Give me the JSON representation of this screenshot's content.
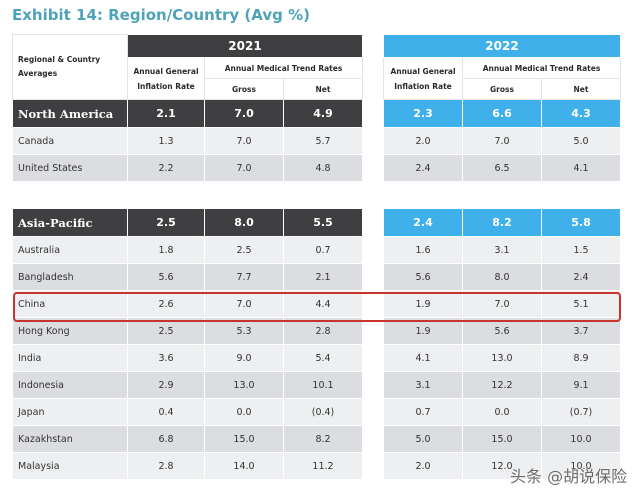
{
  "title": "Exhibit 14: Region/Country (Avg %)",
  "header": {
    "row_label": "Regional & Country Averages",
    "year_2021": "2021",
    "year_2022": "2022",
    "inflation": "Annual General Inflation Rate",
    "medical": "Annual Medical Trend Rates",
    "gross": "Gross",
    "net": "Net"
  },
  "colors": {
    "dark_header": "#3f3f41",
    "blue_header": "#3fb0ea",
    "title": "#4fa3b8",
    "highlight": "#c8332f"
  },
  "north_america": {
    "region": {
      "name": "North America",
      "y2021": [
        "2.1",
        "7.0",
        "4.9"
      ],
      "y2022": [
        "2.3",
        "6.6",
        "4.3"
      ]
    },
    "rows": [
      {
        "name": "Canada",
        "y2021": [
          "1.3",
          "7.0",
          "5.7"
        ],
        "y2022": [
          "2.0",
          "7.0",
          "5.0"
        ]
      },
      {
        "name": "United States",
        "y2021": [
          "2.2",
          "7.0",
          "4.8"
        ],
        "y2022": [
          "2.4",
          "6.5",
          "4.1"
        ]
      }
    ]
  },
  "asia_pacific": {
    "region": {
      "name": "Asia-Pacific",
      "y2021": [
        "2.5",
        "8.0",
        "5.5"
      ],
      "y2022": [
        "2.4",
        "8.2",
        "5.8"
      ]
    },
    "rows": [
      {
        "name": "Australia",
        "y2021": [
          "1.8",
          "2.5",
          "0.7"
        ],
        "y2022": [
          "1.6",
          "3.1",
          "1.5"
        ]
      },
      {
        "name": "Bangladesh",
        "y2021": [
          "5.6",
          "7.7",
          "2.1"
        ],
        "y2022": [
          "5.6",
          "8.0",
          "2.4"
        ]
      },
      {
        "name": "China",
        "y2021": [
          "2.6",
          "7.0",
          "4.4"
        ],
        "y2022": [
          "1.9",
          "7.0",
          "5.1"
        ]
      },
      {
        "name": "Hong Kong",
        "y2021": [
          "2.5",
          "5.3",
          "2.8"
        ],
        "y2022": [
          "1.9",
          "5.6",
          "3.7"
        ]
      },
      {
        "name": "India",
        "y2021": [
          "3.6",
          "9.0",
          "5.4"
        ],
        "y2022": [
          "4.1",
          "13.0",
          "8.9"
        ]
      },
      {
        "name": "Indonesia",
        "y2021": [
          "2.9",
          "13.0",
          "10.1"
        ],
        "y2022": [
          "3.1",
          "12.2",
          "9.1"
        ]
      },
      {
        "name": "Japan",
        "y2021": [
          "0.4",
          "0.0",
          "(0.4)"
        ],
        "y2022": [
          "0.7",
          "0.0",
          "(0.7)"
        ]
      },
      {
        "name": "Kazakhstan",
        "y2021": [
          "6.8",
          "15.0",
          "8.2"
        ],
        "y2022": [
          "5.0",
          "15.0",
          "10.0"
        ]
      },
      {
        "name": "Malaysia",
        "y2021": [
          "2.8",
          "14.0",
          "11.2"
        ],
        "y2022": [
          "2.0",
          "12.0",
          "10.0"
        ]
      }
    ]
  },
  "watermark": "头条 @胡说保险"
}
